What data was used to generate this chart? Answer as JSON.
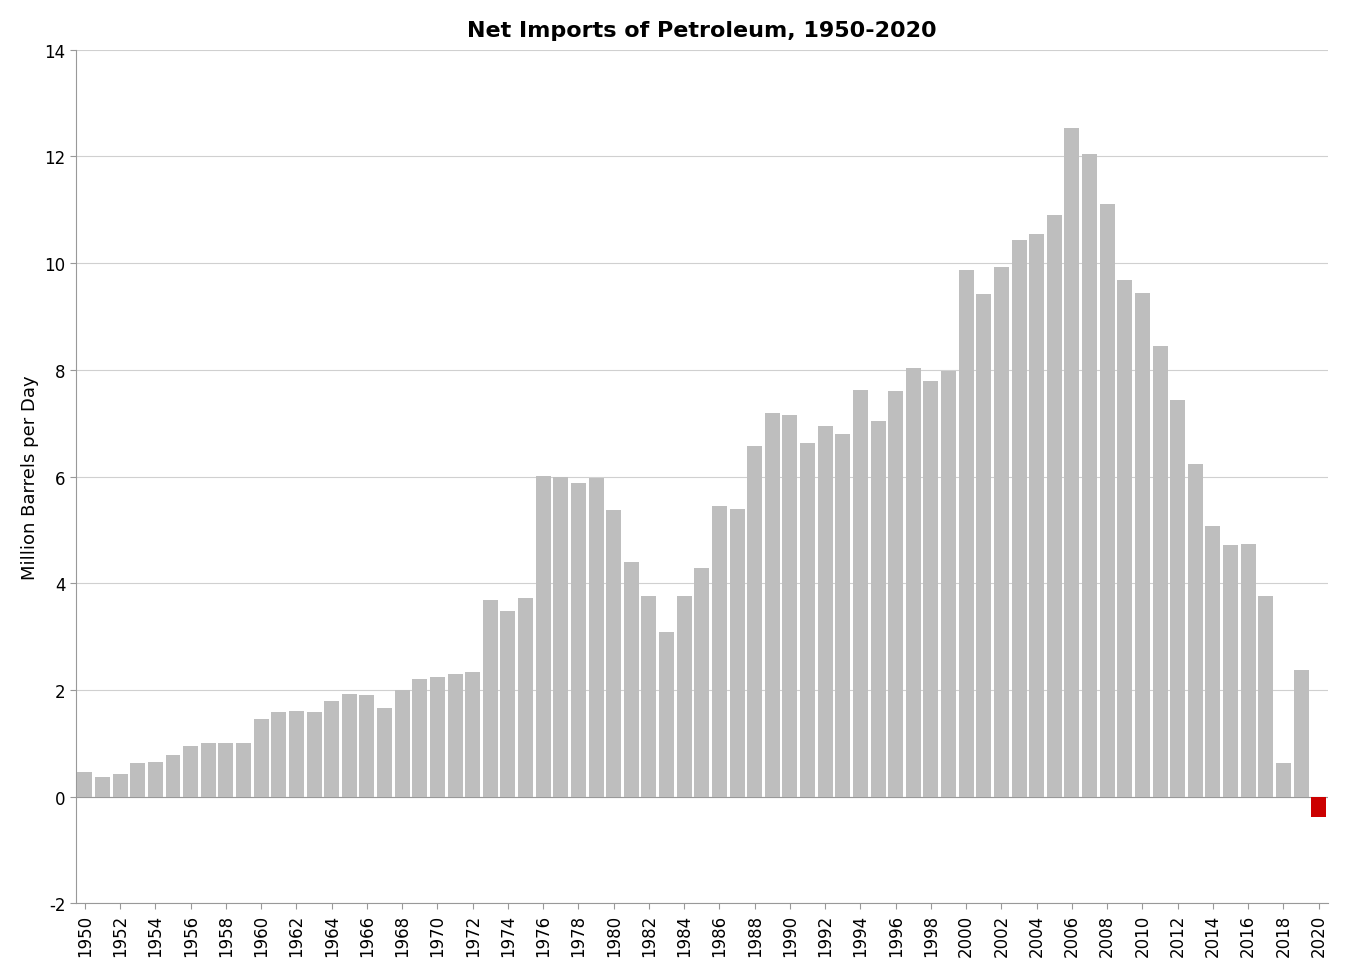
{
  "title": "Net Imports of Petroleum, 1950-2020",
  "ylabel": "Million Barrels per Day",
  "years": [
    1950,
    1951,
    1952,
    1953,
    1954,
    1955,
    1956,
    1957,
    1958,
    1959,
    1960,
    1961,
    1962,
    1963,
    1964,
    1965,
    1966,
    1967,
    1968,
    1969,
    1970,
    1971,
    1972,
    1973,
    1974,
    1975,
    1976,
    1977,
    1978,
    1979,
    1980,
    1981,
    1982,
    1983,
    1984,
    1985,
    1986,
    1987,
    1988,
    1989,
    1990,
    1991,
    1992,
    1993,
    1994,
    1995,
    1996,
    1997,
    1998,
    1999,
    2000,
    2001,
    2002,
    2003,
    2004,
    2005,
    2006,
    2007,
    2008,
    2009,
    2010,
    2011,
    2012,
    2013,
    2014,
    2015,
    2016,
    2017,
    2018,
    2019,
    2020
  ],
  "values": [
    0.47,
    0.37,
    0.42,
    0.64,
    0.65,
    0.78,
    0.95,
    1.01,
    1.01,
    1.01,
    1.45,
    1.58,
    1.6,
    1.58,
    1.8,
    1.92,
    1.9,
    1.67,
    2.0,
    2.21,
    2.24,
    2.29,
    2.34,
    3.69,
    3.48,
    3.72,
    6.01,
    6.0,
    5.88,
    5.97,
    5.37,
    4.4,
    3.76,
    3.09,
    3.77,
    4.29,
    5.44,
    5.39,
    6.58,
    7.2,
    7.16,
    6.63,
    6.94,
    6.79,
    7.63,
    7.05,
    7.6,
    8.03,
    7.79,
    7.97,
    9.87,
    9.42,
    9.92,
    10.44,
    10.54,
    10.9,
    12.53,
    12.04,
    11.1,
    9.69,
    9.44,
    8.45,
    7.43,
    6.24,
    5.07,
    4.72,
    4.73,
    3.77,
    0.63,
    2.37,
    -0.39
  ],
  "xtick_years": [
    1950,
    1952,
    1954,
    1956,
    1958,
    1960,
    1962,
    1964,
    1966,
    1968,
    1970,
    1972,
    1974,
    1976,
    1978,
    1980,
    1982,
    1984,
    1986,
    1988,
    1990,
    1992,
    1994,
    1996,
    1998,
    2000,
    2002,
    2004,
    2006,
    2008,
    2010,
    2012,
    2014,
    2016,
    2018,
    2020
  ],
  "bar_color": "#bebebe",
  "bar_color_negative": "#cc0000",
  "ylim": [
    -2,
    14
  ],
  "yticks": [
    -2,
    0,
    2,
    4,
    6,
    8,
    10,
    12,
    14
  ],
  "background_color": "#ffffff",
  "grid_color": "#d0d0d0",
  "title_fontsize": 16,
  "axis_fontsize": 13,
  "tick_fontsize": 12
}
